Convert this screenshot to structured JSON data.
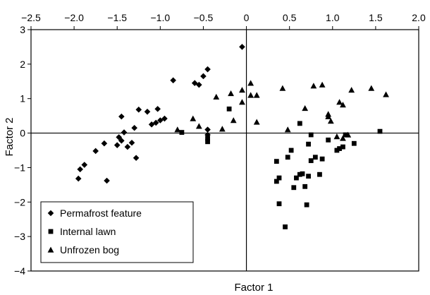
{
  "chart_data": {
    "type": "scatter",
    "xlabel": "Factor 1",
    "ylabel": "Factor 2",
    "xlim": [
      -2.5,
      2.0
    ],
    "ylim": [
      -4,
      3
    ],
    "xticks": [
      -2.5,
      -2.0,
      -1.5,
      -1.0,
      -0.5,
      0,
      0.5,
      1.0,
      1.5,
      2.0
    ],
    "xtick_labels": [
      "−2.5",
      "−2.0",
      "−1.5",
      "−1.0",
      "−0.5",
      "0",
      "0.5",
      "1.0",
      "1.5",
      "2.0"
    ],
    "yticks": [
      3,
      2,
      1,
      0,
      -1,
      -2,
      -3,
      -4
    ],
    "ytick_labels": [
      "3",
      "2",
      "1",
      "0",
      "−1",
      "−2",
      "−3",
      "−4"
    ],
    "x_axis_position": "top",
    "grid": false,
    "reference_lines": [
      0,
      0
    ],
    "legend_position": "bottom-left",
    "marker_color": "#000000",
    "series": [
      {
        "name": "Permafrost feature",
        "marker": "diamond",
        "points": [
          [
            -1.95,
            -1.32
          ],
          [
            -1.93,
            -1.05
          ],
          [
            -1.88,
            -0.92
          ],
          [
            -1.75,
            -0.52
          ],
          [
            -1.65,
            -0.3
          ],
          [
            -1.62,
            -1.38
          ],
          [
            -1.5,
            -0.35
          ],
          [
            -1.48,
            -0.12
          ],
          [
            -1.45,
            -0.22
          ],
          [
            -1.42,
            0.02
          ],
          [
            -1.45,
            0.48
          ],
          [
            -1.38,
            -0.4
          ],
          [
            -1.33,
            -0.28
          ],
          [
            -1.3,
            0.15
          ],
          [
            -1.28,
            -0.72
          ],
          [
            -1.25,
            0.68
          ],
          [
            -1.15,
            0.62
          ],
          [
            -1.1,
            0.25
          ],
          [
            -1.05,
            0.3
          ],
          [
            -1.03,
            0.7
          ],
          [
            -1.0,
            0.37
          ],
          [
            -0.95,
            0.42
          ],
          [
            -0.85,
            1.53
          ],
          [
            -0.6,
            1.45
          ],
          [
            -0.55,
            1.4
          ],
          [
            -0.5,
            1.65
          ],
          [
            -0.45,
            1.85
          ],
          [
            -0.45,
            0.1
          ],
          [
            -0.45,
            -0.05
          ],
          [
            -0.05,
            2.5
          ]
        ]
      },
      {
        "name": "Internal lawn",
        "marker": "square",
        "points": [
          [
            -0.75,
            0.02
          ],
          [
            -0.45,
            -0.15
          ],
          [
            -0.45,
            -0.25
          ],
          [
            -0.2,
            0.7
          ],
          [
            0.35,
            -0.82
          ],
          [
            0.35,
            -1.4
          ],
          [
            0.38,
            -2.05
          ],
          [
            0.38,
            -1.3
          ],
          [
            0.45,
            -2.72
          ],
          [
            0.48,
            -0.7
          ],
          [
            0.52,
            -0.5
          ],
          [
            0.55,
            -1.58
          ],
          [
            0.58,
            -1.3
          ],
          [
            0.62,
            0.28
          ],
          [
            0.62,
            -1.2
          ],
          [
            0.65,
            -1.18
          ],
          [
            0.68,
            -1.55
          ],
          [
            0.7,
            -2.08
          ],
          [
            0.72,
            -0.32
          ],
          [
            0.72,
            -1.25
          ],
          [
            0.75,
            -0.05
          ],
          [
            0.75,
            -0.8
          ],
          [
            0.8,
            -0.7
          ],
          [
            0.85,
            -1.2
          ],
          [
            0.88,
            -0.75
          ],
          [
            0.95,
            -0.2
          ],
          [
            1.05,
            -0.5
          ],
          [
            1.08,
            -0.45
          ],
          [
            1.12,
            -0.4
          ],
          [
            1.15,
            -0.05
          ],
          [
            1.25,
            -0.3
          ],
          [
            1.55,
            0.05
          ]
        ]
      },
      {
        "name": "Unfrozen bog",
        "marker": "triangle",
        "points": [
          [
            -0.8,
            0.1
          ],
          [
            -0.62,
            0.42
          ],
          [
            -0.55,
            0.2
          ],
          [
            -0.35,
            1.05
          ],
          [
            -0.28,
            0.12
          ],
          [
            -0.18,
            1.15
          ],
          [
            -0.15,
            0.37
          ],
          [
            -0.05,
            0.9
          ],
          [
            -0.05,
            1.25
          ],
          [
            0.05,
            1.45
          ],
          [
            0.05,
            1.1
          ],
          [
            0.12,
            0.32
          ],
          [
            0.12,
            1.1
          ],
          [
            0.42,
            1.3
          ],
          [
            0.48,
            0.1
          ],
          [
            0.68,
            0.72
          ],
          [
            0.78,
            1.37
          ],
          [
            0.88,
            1.4
          ],
          [
            0.95,
            0.48
          ],
          [
            0.95,
            0.55
          ],
          [
            0.98,
            0.35
          ],
          [
            1.05,
            -0.1
          ],
          [
            1.08,
            0.9
          ],
          [
            1.12,
            -0.15
          ],
          [
            1.12,
            0.82
          ],
          [
            1.18,
            -0.05
          ],
          [
            1.22,
            1.25
          ],
          [
            1.45,
            1.3
          ],
          [
            1.62,
            1.12
          ]
        ]
      }
    ]
  }
}
